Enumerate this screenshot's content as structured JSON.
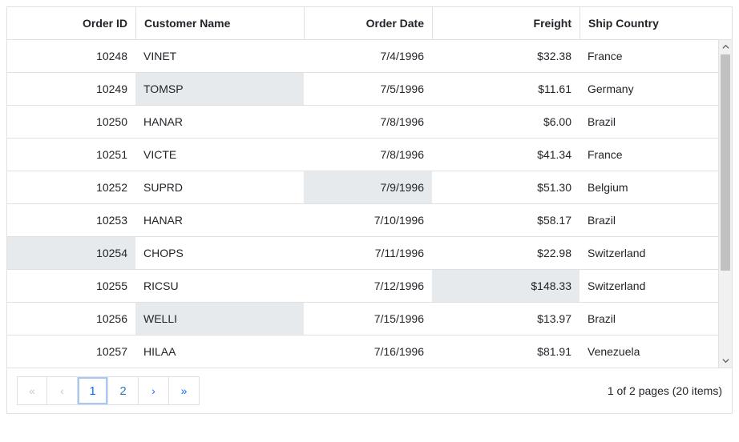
{
  "grid": {
    "columns": [
      {
        "key": "orderId",
        "label": "Order ID",
        "align": "right"
      },
      {
        "key": "customer",
        "label": "Customer Name",
        "align": "left"
      },
      {
        "key": "orderDate",
        "label": "Order Date",
        "align": "right"
      },
      {
        "key": "freight",
        "label": "Freight",
        "align": "right"
      },
      {
        "key": "country",
        "label": "Ship Country",
        "align": "left"
      }
    ],
    "rows": [
      {
        "orderId": "10248",
        "customer": "VINET",
        "orderDate": "7/4/1996",
        "freight": "$32.38",
        "country": "France",
        "highlightCells": []
      },
      {
        "orderId": "10249",
        "customer": "TOMSP",
        "orderDate": "7/5/1996",
        "freight": "$11.61",
        "country": "Germany",
        "highlightCells": [
          "customer"
        ]
      },
      {
        "orderId": "10250",
        "customer": "HANAR",
        "orderDate": "7/8/1996",
        "freight": "$6.00",
        "country": "Brazil",
        "highlightCells": []
      },
      {
        "orderId": "10251",
        "customer": "VICTE",
        "orderDate": "7/8/1996",
        "freight": "$41.34",
        "country": "France",
        "highlightCells": []
      },
      {
        "orderId": "10252",
        "customer": "SUPRD",
        "orderDate": "7/9/1996",
        "freight": "$51.30",
        "country": "Belgium",
        "highlightCells": [
          "orderDate"
        ]
      },
      {
        "orderId": "10253",
        "customer": "HANAR",
        "orderDate": "7/10/1996",
        "freight": "$58.17",
        "country": "Brazil",
        "highlightCells": []
      },
      {
        "orderId": "10254",
        "customer": "CHOPS",
        "orderDate": "7/11/1996",
        "freight": "$22.98",
        "country": "Switzerland",
        "highlightCells": [
          "orderId"
        ]
      },
      {
        "orderId": "10255",
        "customer": "RICSU",
        "orderDate": "7/12/1996",
        "freight": "$148.33",
        "country": "Switzerland",
        "highlightCells": [
          "freight"
        ]
      },
      {
        "orderId": "10256",
        "customer": "WELLI",
        "orderDate": "7/15/1996",
        "freight": "$13.97",
        "country": "Brazil",
        "highlightCells": [
          "customer"
        ]
      },
      {
        "orderId": "10257",
        "customer": "HILAA",
        "orderDate": "7/16/1996",
        "freight": "$81.91",
        "country": "Venezuela",
        "highlightCells": []
      }
    ],
    "highlightColor": "#e6eaed",
    "rowBorderColor": "#e0e0e0"
  },
  "pager": {
    "pages": [
      "1",
      "2"
    ],
    "activePage": "1",
    "info": "1 of 2 pages (20 items)",
    "first": "«",
    "prev": "‹",
    "next": "›",
    "last": "»"
  }
}
